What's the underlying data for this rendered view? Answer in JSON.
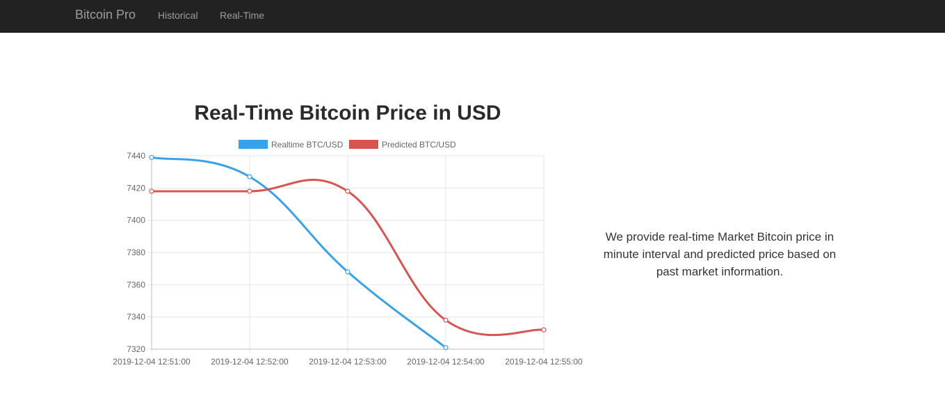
{
  "nav": {
    "brand": "Bitcoin Pro",
    "links": [
      "Historical",
      "Real-Time"
    ]
  },
  "description": "We provide real-time Market Bitcoin price in minute interval and predicted price based on past market information.",
  "chart_data": {
    "type": "line",
    "title": "Real-Time Bitcoin Price in USD",
    "x": [
      "2019-12-04 12:51:00",
      "2019-12-04 12:52:00",
      "2019-12-04 12:53:00",
      "2019-12-04 12:54:00",
      "2019-12-04 12:55:00"
    ],
    "ylim": [
      7320,
      7440
    ],
    "yticks": [
      7320,
      7340,
      7360,
      7380,
      7400,
      7420,
      7440
    ],
    "grid": true,
    "legend": "top",
    "series": [
      {
        "name": "Realtime BTC/USD",
        "color": "#36a2eb",
        "values": [
          7439,
          7427,
          7368,
          7321,
          null
        ]
      },
      {
        "name": "Predicted BTC/USD",
        "color": "#d9534f",
        "values": [
          7418,
          7418,
          7418,
          7338,
          7332
        ]
      }
    ]
  }
}
